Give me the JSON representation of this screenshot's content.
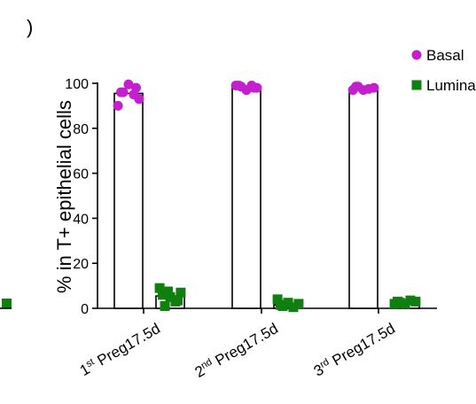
{
  "panel_label": ")",
  "chart_data": {
    "type": "bar",
    "ylabel": "% in T+ epithelial cells",
    "ylim": [
      0,
      100
    ],
    "yticks": [
      "0",
      "20",
      "40",
      "60",
      "80",
      "100"
    ],
    "categories": [
      {
        "prefix": "1",
        "sup": "st",
        "rest": " Preg17.5d"
      },
      {
        "prefix": "2",
        "sup": "nd",
        "rest": " Preg17.5d"
      },
      {
        "prefix": "3",
        "sup": "rd",
        "rest": " Preg17.5d"
      }
    ],
    "series": [
      {
        "name": "Basal",
        "color": "#c41ecf",
        "marker": "circle",
        "means": [
          95.5,
          98.5,
          97.5
        ],
        "points": [
          [
            90,
            93,
            96,
            95,
            99.5,
            96,
            98
          ],
          [
            99,
            98,
            98.5,
            99,
            97,
            99,
            98
          ],
          [
            97,
            98,
            98.5,
            97.5,
            97,
            98.5
          ]
        ]
      },
      {
        "name": "Lumina",
        "color": "#0f7f0f",
        "marker": "square",
        "means": [
          5.5,
          1.5,
          2.5
        ],
        "points": [
          [
            9,
            7,
            1,
            3,
            5,
            6,
            3.5,
            7.5
          ],
          [
            4,
            2,
            1,
            0.5,
            2.5,
            1.5
          ],
          [
            2,
            3,
            2.5,
            3.5,
            2,
            3
          ]
        ]
      }
    ],
    "legend": "top-right"
  }
}
